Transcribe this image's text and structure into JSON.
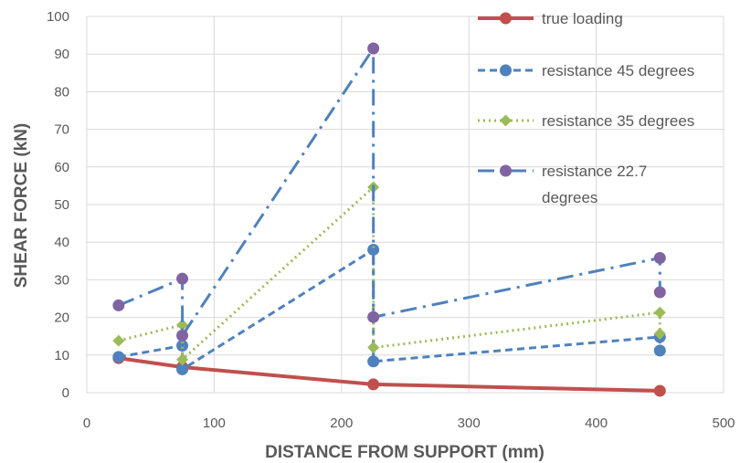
{
  "chart_data": {
    "type": "line",
    "xlabel": "DISTANCE FROM SUPPORT (mm)",
    "ylabel": "SHEAR FORCE (kN)",
    "xlim": [
      0,
      500
    ],
    "ylim": [
      0,
      100
    ],
    "x_ticks": [
      "0",
      "100",
      "200",
      "300",
      "400",
      "500"
    ],
    "y_ticks": [
      "0",
      "10",
      "20",
      "30",
      "40",
      "50",
      "60",
      "70",
      "80",
      "90",
      "100"
    ],
    "grid": true,
    "legend_position": "top-right",
    "series": [
      {
        "name": "true loading",
        "color": "#C0504D",
        "marker": "circle",
        "line_style": "solid",
        "points": [
          [
            25,
            9.2
          ],
          [
            75,
            6.8
          ],
          [
            225,
            2.2
          ],
          [
            450,
            0.5
          ]
        ]
      },
      {
        "name": "resistance 45 degrees",
        "color": "#4F81BD",
        "marker": "circle",
        "line_style": "dashed",
        "points": [
          [
            25,
            9.5
          ],
          [
            75,
            12.5
          ],
          [
            75,
            6.2
          ],
          [
            225,
            38.0
          ],
          [
            225,
            8.3
          ],
          [
            450,
            14.8
          ],
          [
            450,
            11.2
          ]
        ]
      },
      {
        "name": "resistance 35 degrees",
        "color": "#9BBB59",
        "marker": "diamond",
        "line_style": "dotted",
        "points": [
          [
            25,
            13.8
          ],
          [
            75,
            18.0
          ],
          [
            75,
            8.8
          ],
          [
            225,
            54.6
          ],
          [
            225,
            12.0
          ],
          [
            450,
            21.3
          ],
          [
            450,
            15.7
          ]
        ]
      },
      {
        "name_lines": [
          "resistance 22.7",
          "degrees"
        ],
        "color": "#8064A2",
        "line_color": "#4F81BD",
        "marker": "circle",
        "line_style": "dash-dot",
        "points": [
          [
            25,
            23.2
          ],
          [
            75,
            30.3
          ],
          [
            75,
            15.2
          ],
          [
            225,
            91.5
          ],
          [
            225,
            20.1
          ],
          [
            450,
            35.8
          ],
          [
            450,
            26.7
          ]
        ]
      }
    ]
  }
}
